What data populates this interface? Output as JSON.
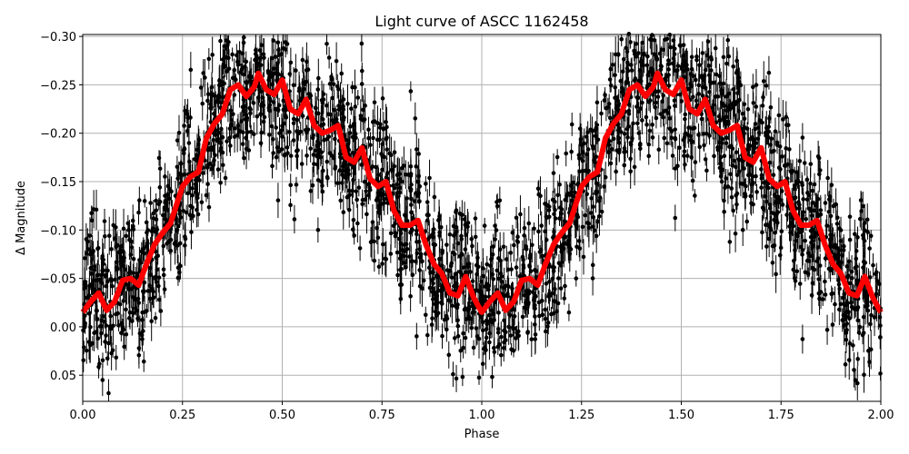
{
  "chart_data": {
    "type": "scatter",
    "title": "Light curve of ASCC 1162458",
    "xlabel": "Phase",
    "ylabel": "Δ Magnitude",
    "xlim": [
      0,
      2
    ],
    "ylim": [
      0.077,
      -0.302
    ],
    "y_inverted": true,
    "grid": true,
    "x_ticks": [
      "0.00",
      "0.25",
      "0.50",
      "0.75",
      "1.00",
      "1.25",
      "1.50",
      "1.75",
      "2.00"
    ],
    "y_ticks": [
      "−0.30",
      "−0.25",
      "−0.20",
      "−0.15",
      "−0.10",
      "−0.05",
      "0.00",
      "0.05"
    ],
    "colors": {
      "observations": "#000000",
      "model": "#ff0000"
    },
    "series": [
      {
        "kind": "errorbar-scatter",
        "color": "#000000"
      },
      {
        "kind": "line",
        "color": "#ff0000",
        "period_in_phase": 1,
        "phase": [
          0.0,
          0.02,
          0.04,
          0.06,
          0.08,
          0.1,
          0.12,
          0.14,
          0.16,
          0.18,
          0.2,
          0.22,
          0.25,
          0.27,
          0.29,
          0.31,
          0.33,
          0.35,
          0.37,
          0.39,
          0.41,
          0.43,
          0.44,
          0.46,
          0.48,
          0.5,
          0.52,
          0.54,
          0.56,
          0.58,
          0.6,
          0.62,
          0.64,
          0.66,
          0.68,
          0.7,
          0.72,
          0.74,
          0.76,
          0.78,
          0.8,
          0.82,
          0.84,
          0.86,
          0.88,
          0.9,
          0.92,
          0.94,
          0.96,
          0.98,
          1.0
        ],
        "magnitude": [
          -0.015,
          -0.026,
          -0.035,
          -0.017,
          -0.026,
          -0.048,
          -0.05,
          -0.043,
          -0.065,
          -0.085,
          -0.097,
          -0.107,
          -0.145,
          -0.155,
          -0.16,
          -0.195,
          -0.21,
          -0.22,
          -0.245,
          -0.25,
          -0.238,
          -0.248,
          -0.262,
          -0.245,
          -0.24,
          -0.255,
          -0.225,
          -0.22,
          -0.235,
          -0.208,
          -0.2,
          -0.203,
          -0.208,
          -0.175,
          -0.17,
          -0.185,
          -0.153,
          -0.145,
          -0.15,
          -0.12,
          -0.105,
          -0.105,
          -0.11,
          -0.085,
          -0.065,
          -0.055,
          -0.035,
          -0.032,
          -0.052,
          -0.03,
          -0.015
        ]
      }
    ]
  }
}
